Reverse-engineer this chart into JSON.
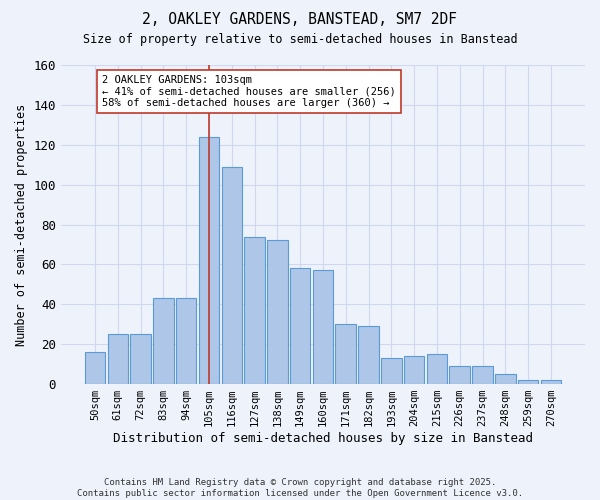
{
  "title1": "2, OAKLEY GARDENS, BANSTEAD, SM7 2DF",
  "title2": "Size of property relative to semi-detached houses in Banstead",
  "xlabel": "Distribution of semi-detached houses by size in Banstead",
  "ylabel": "Number of semi-detached properties",
  "categories": [
    "50sqm",
    "61sqm",
    "72sqm",
    "83sqm",
    "94sqm",
    "105sqm",
    "116sqm",
    "127sqm",
    "138sqm",
    "149sqm",
    "160sqm",
    "171sqm",
    "182sqm",
    "193sqm",
    "204sqm",
    "215sqm",
    "226sqm",
    "237sqm",
    "248sqm",
    "259sqm",
    "270sqm"
  ],
  "values": [
    16,
    25,
    25,
    43,
    43,
    124,
    109,
    74,
    72,
    58,
    57,
    30,
    29,
    13,
    14,
    15,
    9,
    9,
    5,
    2,
    2
  ],
  "bar_color": "#aec6e8",
  "bar_edge_color": "#5b9bd5",
  "grid_color": "#d0d8f0",
  "bg_color": "#eef2fb",
  "vline_x": 5,
  "vline_color": "#c0392b",
  "annotation_text": "2 OAKLEY GARDENS: 103sqm\n← 41% of semi-detached houses are smaller (256)\n58% of semi-detached houses are larger (360) →",
  "annotation_box_color": "#ffffff",
  "annotation_box_edge": "#c0392b",
  "ylim": [
    0,
    160
  ],
  "yticks": [
    0,
    20,
    40,
    60,
    80,
    100,
    120,
    140,
    160
  ],
  "footer": "Contains HM Land Registry data © Crown copyright and database right 2025.\nContains public sector information licensed under the Open Government Licence v3.0."
}
